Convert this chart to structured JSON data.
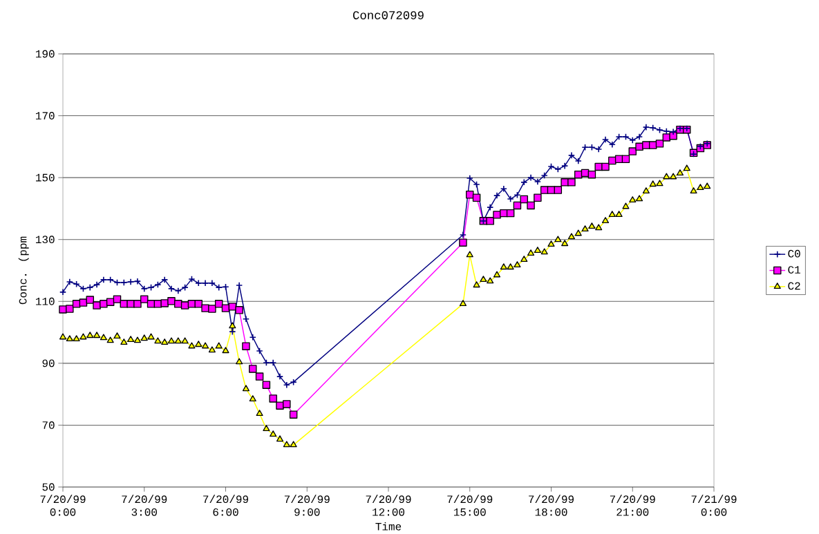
{
  "chart_data": {
    "type": "line",
    "title": "Conc072099",
    "xlabel": "Time",
    "ylabel": "Conc. (ppm",
    "x": [
      "1999-07-20T00:00",
      "1999-07-20T00:15",
      "1999-07-20T00:30",
      "1999-07-20T00:45",
      "1999-07-20T01:00",
      "1999-07-20T01:15",
      "1999-07-20T01:30",
      "1999-07-20T01:45",
      "1999-07-20T02:00",
      "1999-07-20T02:15",
      "1999-07-20T02:30",
      "1999-07-20T02:45",
      "1999-07-20T03:00",
      "1999-07-20T03:15",
      "1999-07-20T03:30",
      "1999-07-20T03:45",
      "1999-07-20T04:00",
      "1999-07-20T04:15",
      "1999-07-20T04:30",
      "1999-07-20T04:45",
      "1999-07-20T05:00",
      "1999-07-20T05:15",
      "1999-07-20T05:30",
      "1999-07-20T05:45",
      "1999-07-20T06:00",
      "1999-07-20T06:15",
      "1999-07-20T06:30",
      "1999-07-20T06:45",
      "1999-07-20T07:00",
      "1999-07-20T07:15",
      "1999-07-20T07:30",
      "1999-07-20T07:45",
      "1999-07-20T08:00",
      "1999-07-20T08:15",
      "1999-07-20T08:30",
      "1999-07-20T14:45",
      "1999-07-20T15:00",
      "1999-07-20T15:15",
      "1999-07-20T15:30",
      "1999-07-20T15:45",
      "1999-07-20T16:00",
      "1999-07-20T16:15",
      "1999-07-20T16:30",
      "1999-07-20T16:45",
      "1999-07-20T17:00",
      "1999-07-20T17:15",
      "1999-07-20T17:30",
      "1999-07-20T17:45",
      "1999-07-20T18:00",
      "1999-07-20T18:15",
      "1999-07-20T18:30",
      "1999-07-20T18:45",
      "1999-07-20T19:00",
      "1999-07-20T19:15",
      "1999-07-20T19:30",
      "1999-07-20T19:45",
      "1999-07-20T20:00",
      "1999-07-20T20:15",
      "1999-07-20T20:30",
      "1999-07-20T20:45",
      "1999-07-20T21:00",
      "1999-07-20T21:15",
      "1999-07-20T21:30",
      "1999-07-20T21:45",
      "1999-07-20T22:00",
      "1999-07-20T22:15",
      "1999-07-20T22:30",
      "1999-07-20T22:45",
      "1999-07-20T23:00",
      "1999-07-20T23:15",
      "1999-07-20T23:30",
      "1999-07-20T23:45"
    ],
    "series": [
      {
        "name": "C0",
        "color": "#000080",
        "marker": "cross",
        "values": [
          113,
          116.3,
          115.6,
          114.1,
          114.5,
          115.4,
          117,
          117,
          116.1,
          116.1,
          116.3,
          116.5,
          114.1,
          114.5,
          115.4,
          117,
          114.1,
          113.4,
          114.5,
          117.2,
          115.9,
          115.9,
          115.9,
          114.5,
          114.7,
          100.2,
          115.2,
          104.3,
          98.4,
          94,
          90.2,
          90.2,
          85.7,
          83,
          83.9,
          131.5,
          149.8,
          147.8,
          136,
          140.4,
          144.2,
          146.4,
          143.1,
          144.4,
          148.5,
          150,
          148.7,
          150.7,
          153.6,
          152.7,
          153.8,
          157.2,
          155.4,
          159.8,
          159.8,
          159.2,
          162.3,
          160.7,
          163.2,
          163.2,
          162.1,
          163.2,
          166.3,
          166.1,
          165.4,
          165,
          164.8,
          165.9,
          165.9,
          157.6,
          160.1,
          161
        ]
      },
      {
        "name": "C1",
        "color": "#ff00ff",
        "marker": "square",
        "values": [
          107.4,
          107.6,
          109.2,
          109.6,
          110.5,
          108.7,
          109.2,
          109.8,
          110.7,
          109.2,
          109.2,
          109.2,
          110.7,
          109.2,
          109.2,
          109.4,
          110.1,
          109.2,
          108.7,
          109.2,
          109.2,
          107.8,
          107.6,
          109.2,
          107.8,
          108.3,
          107.2,
          95.5,
          88.2,
          85.7,
          83,
          78.6,
          76.3,
          76.8,
          73.4,
          129,
          144.5,
          143.5,
          136,
          136,
          138,
          138.5,
          138.5,
          141,
          143,
          141,
          143.5,
          146,
          146,
          146,
          148.5,
          148.5,
          151,
          151.5,
          151,
          153.5,
          153.5,
          155.5,
          156,
          156,
          158.5,
          160,
          160.5,
          160.5,
          161,
          163,
          163.5,
          165.5,
          165.5,
          158,
          159.5,
          160.5
        ]
      },
      {
        "name": "C2",
        "color": "#ffff00",
        "marker": "triangle",
        "values": [
          98.4,
          97.8,
          97.8,
          98.4,
          98.9,
          98.9,
          98.2,
          97.3,
          98.7,
          96.7,
          97.6,
          97.3,
          98,
          98.4,
          97.1,
          96.7,
          97.1,
          97.1,
          97.1,
          95.5,
          96,
          95.5,
          94.2,
          95.5,
          94,
          102,
          90.4,
          81.7,
          78.4,
          73.7,
          68.8,
          67,
          65.4,
          63.6,
          63.6,
          109.2,
          125,
          115.2,
          117,
          116.5,
          118.5,
          121,
          121,
          121.7,
          123.5,
          125.5,
          126.4,
          125.9,
          128.4,
          129.9,
          128.6,
          130.8,
          131.9,
          133.3,
          134.2,
          133.7,
          136,
          138,
          138,
          140.6,
          142.7,
          143.1,
          145.6,
          147.8,
          148,
          150.2,
          150.2,
          151.4,
          152.9,
          145.6,
          146.7,
          147.1
        ]
      }
    ],
    "xlim": [
      "1999-07-20T00:00",
      "1999-07-21T00:00"
    ],
    "xticks": [
      {
        "value": "1999-07-20T00:00",
        "label": "7/20/99 0:00"
      },
      {
        "value": "1999-07-20T03:00",
        "label": "7/20/99 3:00"
      },
      {
        "value": "1999-07-20T06:00",
        "label": "7/20/99 6:00"
      },
      {
        "value": "1999-07-20T09:00",
        "label": "7/20/99 9:00"
      },
      {
        "value": "1999-07-20T12:00",
        "label": "7/20/99 12:00"
      },
      {
        "value": "1999-07-20T15:00",
        "label": "7/20/99 15:00"
      },
      {
        "value": "1999-07-20T18:00",
        "label": "7/20/99 18:00"
      },
      {
        "value": "1999-07-20T21:00",
        "label": "7/20/99 21:00"
      },
      {
        "value": "1999-07-21T00:00",
        "label": "7/21/99 0:00"
      }
    ],
    "ylim": [
      50,
      190
    ],
    "yticks": [
      50,
      70,
      90,
      110,
      130,
      150,
      170,
      190
    ],
    "grid": "y",
    "legend": "right"
  }
}
